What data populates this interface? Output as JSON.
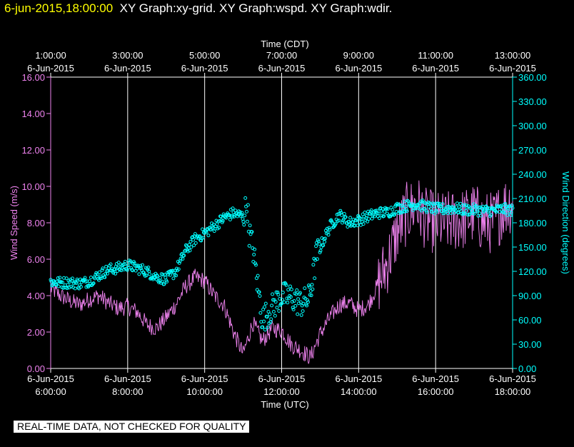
{
  "header": {
    "timestamp": "6-jun-2015,18:00:00",
    "title": "XY Graph:xy-grid.  XY Graph:wspd.  XY Graph:wdir."
  },
  "footer": {
    "quality_notice": "REAL-TIME DATA, NOT CHECKED FOR QUALITY"
  },
  "colors": {
    "background": "#000000",
    "wspd": "#ee82ee",
    "wdir": "#00ffff",
    "grid": "#ffffff",
    "timestamp": "#ffff00"
  },
  "chart_data": {
    "type": "scatter",
    "top_axis": {
      "label": "Time (CDT)",
      "tick_times": [
        "1:00:00",
        "3:00:00",
        "5:00:00",
        "7:00:00",
        "9:00:00",
        "11:00:00",
        "13:00:00"
      ],
      "tick_dates": [
        "6-Jun-2015",
        "6-Jun-2015",
        "6-Jun-2015",
        "6-Jun-2015",
        "6-Jun-2015",
        "6-Jun-2015",
        "6-Jun-2015"
      ]
    },
    "bottom_axis": {
      "label": "Time (UTC)",
      "tick_dates": [
        "6-Jun-2015",
        "6-Jun-2015",
        "6-Jun-2015",
        "6-Jun-2015",
        "6-Jun-2015",
        "6-Jun-2015",
        "6-Jun-2015"
      ],
      "tick_times": [
        "6:00:00",
        "8:00:00",
        "10:00:00",
        "12:00:00",
        "14:00:00",
        "16:00:00",
        "18:00:00"
      ]
    },
    "x_hours_utc": [
      6,
      8,
      10,
      12,
      14,
      16,
      18
    ],
    "xlim": [
      6,
      18
    ],
    "left_axis": {
      "label": "Wind Speed (m/s)",
      "ylim": [
        0,
        16
      ],
      "ticks": [
        "0.00",
        "2.00",
        "4.00",
        "6.00",
        "8.00",
        "10.00",
        "12.00",
        "14.00",
        "16.00"
      ]
    },
    "right_axis": {
      "label": "Wind Direction (degrees)",
      "ylim": [
        0,
        360
      ],
      "ticks": [
        "0.00",
        "30.00",
        "60.00",
        "90.00",
        "120.00",
        "150.00",
        "180.00",
        "210.00",
        "240.00",
        "270.00",
        "300.00",
        "330.00",
        "360.00"
      ]
    },
    "grid": "vertical lines at major x ticks",
    "series": [
      {
        "key": "wspd",
        "axis": "left",
        "style": "line",
        "x": [
          6.0,
          6.25,
          6.5,
          6.75,
          7.0,
          7.25,
          7.5,
          7.75,
          8.0,
          8.25,
          8.5,
          8.75,
          9.0,
          9.25,
          9.5,
          9.75,
          10.0,
          10.25,
          10.5,
          10.75,
          11.0,
          11.25,
          11.5,
          11.75,
          12.0,
          12.25,
          12.5,
          12.75,
          13.0,
          13.25,
          13.5,
          13.75,
          14.0,
          14.25,
          14.5,
          14.75,
          15.0,
          15.25,
          15.5,
          15.75,
          16.0,
          16.25,
          16.5,
          16.75,
          17.0,
          17.25,
          17.5,
          17.75,
          18.0
        ],
        "y": [
          4.4,
          4.0,
          3.7,
          3.5,
          3.8,
          4.0,
          3.6,
          3.3,
          3.4,
          3.1,
          2.4,
          2.2,
          2.8,
          3.5,
          4.5,
          5.0,
          4.8,
          4.0,
          3.5,
          2.0,
          0.8,
          2.5,
          1.5,
          2.2,
          2.1,
          1.3,
          1.0,
          0.6,
          1.9,
          2.8,
          3.5,
          3.6,
          3.2,
          3.5,
          4.6,
          5.8,
          7.5,
          8.5,
          9.0,
          8.2,
          8.0,
          8.0,
          8.1,
          8.2,
          8.5,
          8.0,
          8.0,
          8.8,
          9.2
        ],
        "noise": 0.8
      },
      {
        "key": "wdir",
        "axis": "right",
        "style": "points",
        "x": [
          6.0,
          6.25,
          6.5,
          6.75,
          7.0,
          7.25,
          7.5,
          7.75,
          8.0,
          8.25,
          8.5,
          8.75,
          9.0,
          9.25,
          9.5,
          9.75,
          10.0,
          10.25,
          10.5,
          10.75,
          11.0,
          11.05,
          11.1,
          11.15,
          11.25,
          11.5,
          11.75,
          12.0,
          12.25,
          12.5,
          12.7,
          12.8,
          12.9,
          13.0,
          13.25,
          13.5,
          13.75,
          14.0,
          14.25,
          14.5,
          14.75,
          15.0,
          15.25,
          15.5,
          15.75,
          16.0,
          16.25,
          16.5,
          16.75,
          17.0,
          17.25,
          17.5,
          17.75,
          18.0
        ],
        "y": [
          107,
          106,
          106,
          105,
          108,
          115,
          122,
          124,
          128,
          124,
          120,
          113,
          110,
          120,
          145,
          160,
          167,
          176,
          186,
          192,
          188,
          195,
          205,
          170,
          150,
          60,
          75,
          90,
          88,
          80,
          86,
          108,
          140,
          150,
          175,
          190,
          180,
          183,
          188,
          192,
          193,
          198,
          201,
          203,
          200,
          197,
          197,
          198,
          196,
          196,
          195,
          195,
          197,
          195
        ],
        "noise": 7
      }
    ]
  }
}
